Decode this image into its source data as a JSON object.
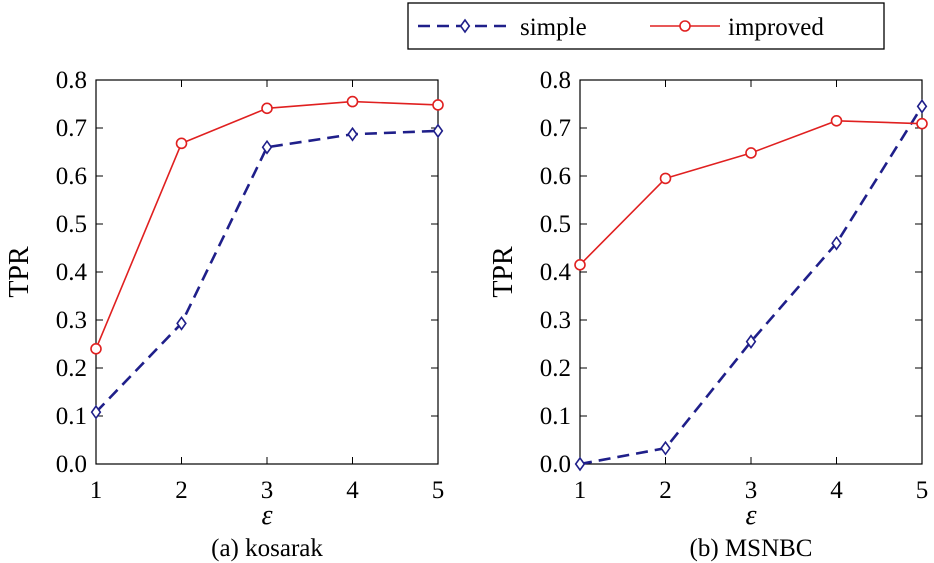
{
  "colors": {
    "simple": "#1f1f8a",
    "improved": "#e02020",
    "axis": "#000000"
  },
  "legend": {
    "placement": "top-right",
    "items": [
      {
        "label": "simple",
        "marker": "diamond",
        "style": "dashed"
      },
      {
        "label": "improved",
        "marker": "circle",
        "style": "solid"
      }
    ]
  },
  "chart_data": [
    {
      "type": "line",
      "caption": "(a) kosarak",
      "xlabel": "ε",
      "ylabel": "TPR",
      "x": [
        1,
        2,
        3,
        4,
        5
      ],
      "xticks": [
        "1",
        "2",
        "3",
        "4",
        "5"
      ],
      "yticks": [
        "0.0",
        "0.1",
        "0.2",
        "0.3",
        "0.4",
        "0.5",
        "0.6",
        "0.7",
        "0.8"
      ],
      "xlim": [
        1,
        5
      ],
      "ylim": [
        0,
        0.8
      ],
      "grid": false,
      "series": [
        {
          "name": "simple",
          "values": [
            0.108,
            0.293,
            0.66,
            0.687,
            0.694
          ]
        },
        {
          "name": "improved",
          "values": [
            0.24,
            0.668,
            0.741,
            0.755,
            0.748
          ]
        }
      ]
    },
    {
      "type": "line",
      "caption": "(b) MSNBC",
      "xlabel": "ε",
      "ylabel": "TPR",
      "x": [
        1,
        2,
        3,
        4,
        5
      ],
      "xticks": [
        "1",
        "2",
        "3",
        "4",
        "5"
      ],
      "yticks": [
        "0.0",
        "0.1",
        "0.2",
        "0.3",
        "0.4",
        "0.5",
        "0.6",
        "0.7",
        "0.8"
      ],
      "xlim": [
        1,
        5
      ],
      "ylim": [
        0,
        0.8
      ],
      "grid": false,
      "series": [
        {
          "name": "simple",
          "values": [
            0.0,
            0.033,
            0.255,
            0.46,
            0.745
          ]
        },
        {
          "name": "improved",
          "values": [
            0.415,
            0.595,
            0.648,
            0.715,
            0.709
          ]
        }
      ]
    }
  ]
}
